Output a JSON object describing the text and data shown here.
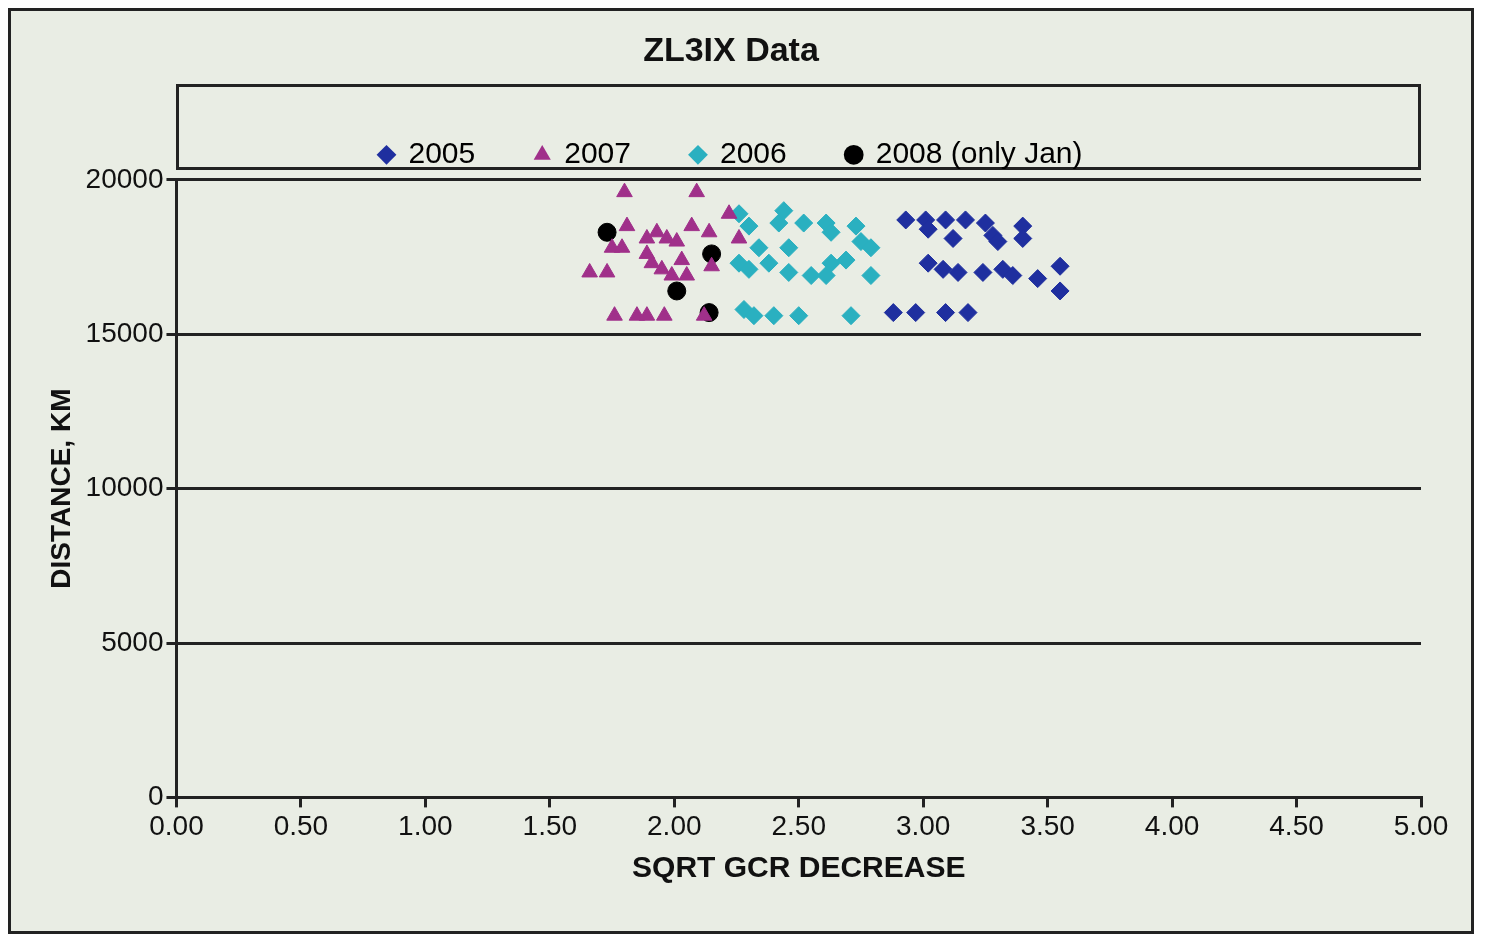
{
  "chart_data": {
    "type": "scatter",
    "title": "ZL3IX Data",
    "xlabel": "SQRT GCR DECREASE",
    "ylabel": "DISTANCE, KM",
    "xlim": [
      0,
      5
    ],
    "ylim": [
      0,
      20000
    ],
    "xticks": [
      {
        "value": 0,
        "label": "0.00"
      },
      {
        "value": 0.5,
        "label": "0.50"
      },
      {
        "value": 1,
        "label": "1.00"
      },
      {
        "value": 1.5,
        "label": "1.50"
      },
      {
        "value": 2,
        "label": "2.00"
      },
      {
        "value": 2.5,
        "label": "2.50"
      },
      {
        "value": 3,
        "label": "3.00"
      },
      {
        "value": 3.5,
        "label": "3.50"
      },
      {
        "value": 4,
        "label": "4.00"
      },
      {
        "value": 4.5,
        "label": "4.50"
      },
      {
        "value": 5,
        "label": "5.00"
      }
    ],
    "yticks": [
      0,
      5000,
      10000,
      15000,
      20000
    ],
    "grid": "y",
    "legend": "top",
    "series": [
      {
        "name": "2005",
        "color": "#1f2f9f",
        "marker": "diamond",
        "x": [
          2.93,
          3.01,
          3.02,
          3.09,
          3.17,
          3.25,
          3.28,
          3.4,
          3.4,
          3.12,
          3.3,
          3.02,
          3.08,
          3.14,
          3.24,
          3.32,
          3.36,
          3.46,
          3.55,
          3.55,
          2.88,
          2.97,
          3.09,
          3.18
        ],
        "values": [
          18700,
          18700,
          18400,
          18700,
          18700,
          18600,
          18200,
          18500,
          18100,
          18100,
          18000,
          17300,
          17100,
          17000,
          17000,
          17100,
          16900,
          16800,
          17200,
          16400,
          15700,
          15700,
          15700,
          15700
        ]
      },
      {
        "name": "2007",
        "color": "#a0308a",
        "marker": "triangle",
        "x": [
          1.8,
          2.09,
          1.66,
          1.73,
          1.75,
          1.79,
          1.81,
          1.89,
          1.93,
          1.97,
          2.01,
          1.91,
          1.95,
          2.03,
          2.07,
          2.14,
          2.22,
          2.26,
          1.76,
          1.85,
          1.89,
          1.96,
          2.12,
          1.99,
          1.89,
          2.05,
          2.15
        ],
        "values": [
          19600,
          19600,
          17000,
          17000,
          17800,
          17800,
          18500,
          18100,
          18300,
          18100,
          18000,
          17300,
          17100,
          17400,
          18500,
          18300,
          18900,
          18100,
          15600,
          15600,
          15600,
          15600,
          15600,
          16900,
          17600,
          16900,
          17200
        ]
      },
      {
        "name": "2006",
        "color": "#2ab0c0",
        "marker": "diamond",
        "x": [
          2.26,
          2.3,
          2.42,
          2.44,
          2.52,
          2.61,
          2.63,
          2.73,
          2.75,
          2.79,
          2.26,
          2.3,
          2.38,
          2.46,
          2.55,
          2.61,
          2.63,
          2.69,
          2.79,
          2.28,
          2.32,
          2.4,
          2.5,
          2.71,
          2.34,
          2.46
        ],
        "values": [
          18900,
          18500,
          18600,
          19000,
          18600,
          18600,
          18300,
          18500,
          18000,
          17800,
          17300,
          17100,
          17300,
          17000,
          16900,
          16900,
          17300,
          17400,
          16900,
          15800,
          15600,
          15600,
          15600,
          15600,
          17800,
          17800
        ]
      },
      {
        "name": "2008 (only Jan)",
        "color": "#000000",
        "marker": "circle",
        "x": [
          1.73,
          2.15,
          2.01,
          2.14
        ],
        "values": [
          18300,
          17600,
          16400,
          15700
        ]
      }
    ]
  }
}
